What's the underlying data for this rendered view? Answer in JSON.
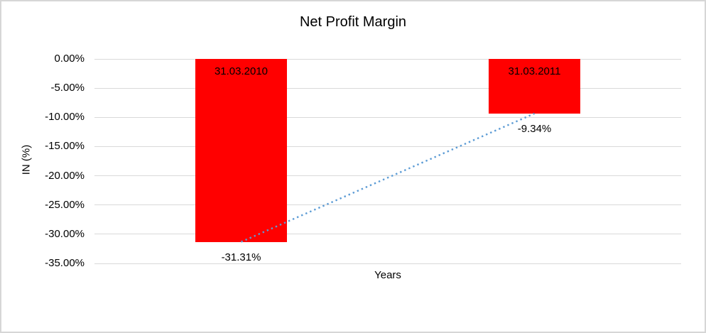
{
  "window": {
    "background_color": "#FFFFFF",
    "border_color": "#D6D6D6"
  },
  "chart_data": {
    "type": "bar",
    "title": "Net Profit Margin",
    "xlabel": "Years",
    "ylabel": "IN (%)",
    "categories": [
      "31.03.2010",
      "31.03.2011"
    ],
    "series": [
      {
        "name": "Net Profit Margin",
        "values": [
          -31.31,
          -9.34
        ]
      }
    ],
    "data_labels": [
      "-31.31%",
      "-9.34%"
    ],
    "category_label_position": "inside-top",
    "ylim": [
      -35,
      0
    ],
    "yticks": [
      0,
      -5,
      -10,
      -15,
      -20,
      -25,
      -30,
      -35
    ],
    "ytick_labels": [
      "0.00%",
      "-5.00%",
      "-10.00%",
      "-15.00%",
      "-20.00%",
      "-25.00%",
      "-30.00%",
      "-35.00%"
    ],
    "grid": true,
    "legend": "none",
    "bar_color": "#FF0000",
    "gridline_color": "#D9D9D9",
    "text_color": "#000000",
    "trendline": {
      "style": "dotted",
      "color": "#5B9BD5",
      "from_value": -31.31,
      "to_value": -9.34
    }
  }
}
